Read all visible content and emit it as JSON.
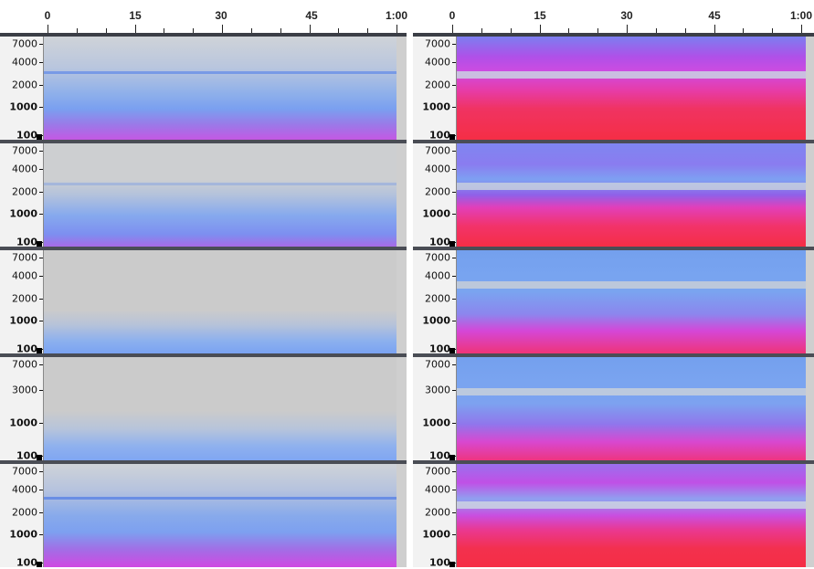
{
  "timeline": {
    "ticks": [
      "0",
      "15",
      "30",
      "45",
      "1:00"
    ]
  },
  "panels": {
    "left": {
      "colormap": "grayscale-blue-magenta",
      "tracks": [
        {
          "labels": [
            "7000",
            "4000",
            "2000",
            "1000",
            "100"
          ]
        },
        {
          "labels": [
            "7000",
            "4000",
            "2000",
            "1000",
            "100"
          ]
        },
        {
          "labels": [
            "7000",
            "4000",
            "2000",
            "1000",
            "100"
          ]
        },
        {
          "labels": [
            "7000",
            "3000",
            "1000",
            "100"
          ]
        },
        {
          "labels": [
            "7000",
            "4000",
            "2000",
            "1000",
            "100"
          ]
        }
      ]
    },
    "right": {
      "colormap": "blue-magenta-red",
      "tracks": [
        {
          "labels": [
            "7000",
            "4000",
            "2000",
            "1000",
            "100"
          ]
        },
        {
          "labels": [
            "7000",
            "4000",
            "2000",
            "1000",
            "100"
          ]
        },
        {
          "labels": [
            "7000",
            "4000",
            "2000",
            "1000",
            "100"
          ]
        },
        {
          "labels": [
            "7000",
            "3000",
            "1000",
            "100"
          ]
        },
        {
          "labels": [
            "7000",
            "4000",
            "2000",
            "1000",
            "100"
          ]
        }
      ]
    }
  },
  "colors": {
    "gray_bg": "#cdcdcd",
    "blue": "#6f9cf0",
    "magenta": "#e040e8",
    "red": "#f5334f",
    "band_light": "#c8d4de"
  }
}
